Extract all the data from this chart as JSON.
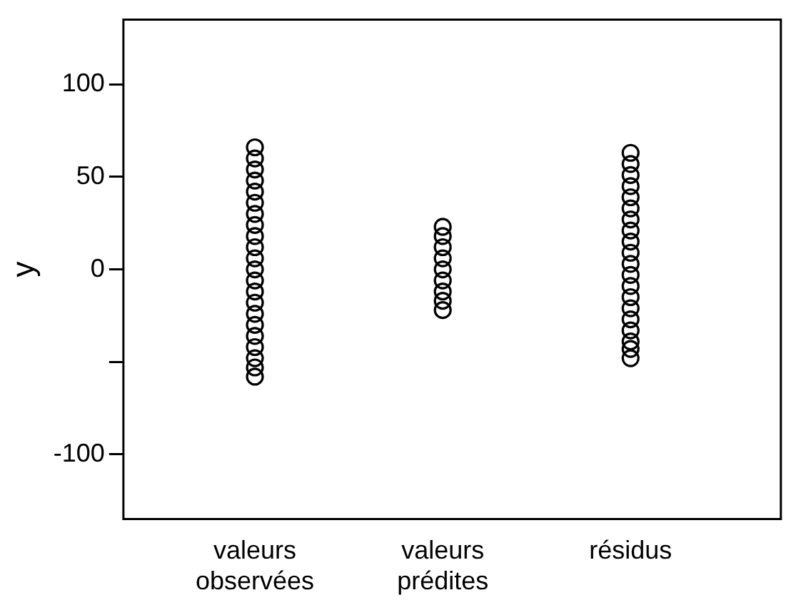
{
  "chart_data": {
    "type": "scatter",
    "ylabel": "y",
    "categories": [
      "valeurs\nobservées",
      "valeurs\nprédites",
      "résidus"
    ],
    "series": [
      {
        "color": "#000000",
        "x": [
          "valeurs\nobservées",
          "valeurs\nobservées",
          "valeurs\nobservées",
          "valeurs\nobservées",
          "valeurs\nobservées",
          "valeurs\nobservées",
          "valeurs\nobservées",
          "valeurs\nobservées",
          "valeurs\nobservées",
          "valeurs\nobservées",
          "valeurs\nobservées",
          "valeurs\nobservées",
          "valeurs\nobservées",
          "valeurs\nobservées",
          "valeurs\nobservées",
          "valeurs\nobservées",
          "valeurs\nobservées",
          "valeurs\nobservées",
          "valeurs\nobservées",
          "valeurs\nobservées",
          "valeurs\nobservées",
          "valeurs\nobservées"
        ],
        "values": [
          66,
          60,
          54,
          48,
          42,
          36,
          30,
          24,
          18,
          12,
          6,
          0,
          -6,
          -12,
          -18,
          -24,
          -30,
          -36,
          -42,
          -48,
          -53,
          -58
        ]
      },
      {
        "color": "#000000",
        "x": [
          "valeurs\nprédites",
          "valeurs\nprédites",
          "valeurs\nprédites",
          "valeurs\nprédites",
          "valeurs\nprédites",
          "valeurs\nprédites",
          "valeurs\nprédites",
          "valeurs\nprédites",
          "valeurs\nprédites"
        ],
        "values": [
          23,
          18,
          12,
          6,
          0,
          -6,
          -12,
          -17,
          -22
        ]
      },
      {
        "color": "#000000",
        "x": [
          "résidus",
          "résidus",
          "résidus",
          "résidus",
          "résidus",
          "résidus",
          "résidus",
          "résidus",
          "résidus",
          "résidus",
          "résidus",
          "résidus",
          "résidus",
          "résidus",
          "résidus",
          "résidus",
          "résidus",
          "résidus",
          "résidus",
          "résidus"
        ],
        "values": [
          63,
          57,
          51,
          45,
          39,
          33,
          27,
          21,
          15,
          9,
          3,
          -3,
          -9,
          -15,
          -21,
          -27,
          -33,
          -39,
          -43,
          -48
        ]
      }
    ],
    "ylim": [
      -135,
      135
    ],
    "yticks": [
      {
        "value": -100,
        "label": "-100"
      },
      {
        "value": -50,
        "label": null
      },
      0,
      50,
      100
    ],
    "marker": "circle",
    "grid": false
  }
}
